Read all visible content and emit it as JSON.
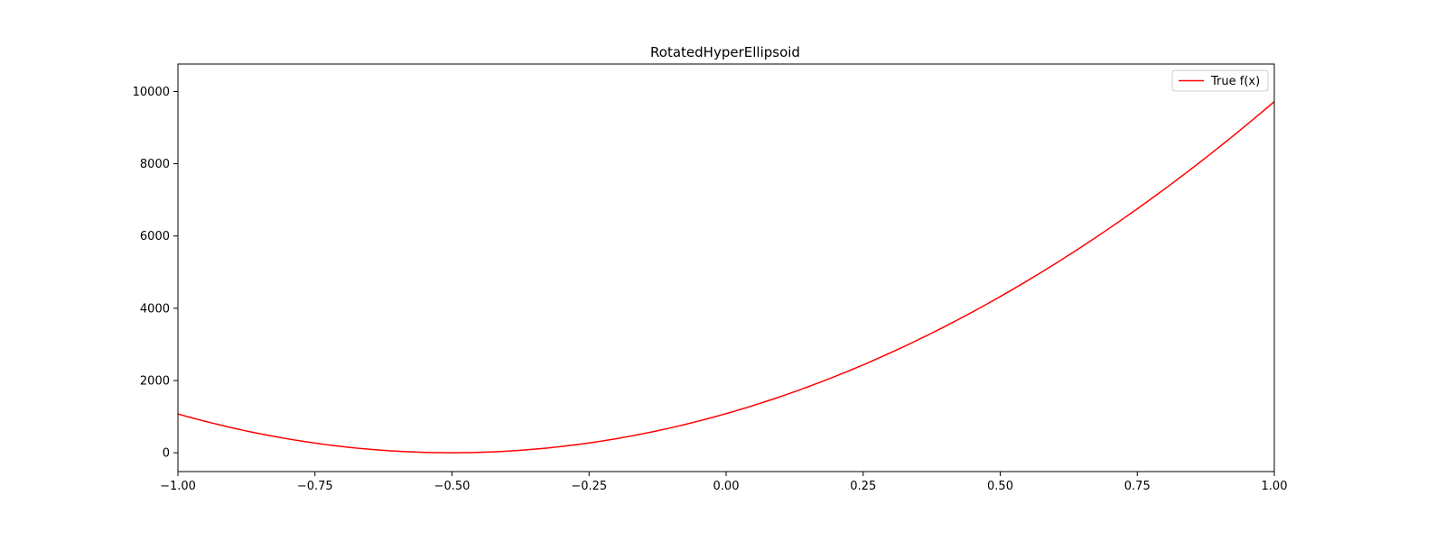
{
  "chart_data": {
    "type": "line",
    "title": "RotatedHyperEllipsoid",
    "xlabel": "",
    "ylabel": "",
    "xlim": [
      -1.0,
      1.0
    ],
    "ylim": [
      -520,
      10760
    ],
    "x_ticks": [
      -1.0,
      -0.75,
      -0.5,
      -0.25,
      0.0,
      0.25,
      0.5,
      0.75,
      1.0
    ],
    "x_tick_labels": [
      "−1.00",
      "−0.75",
      "−0.50",
      "−0.25",
      "0.00",
      "0.25",
      "0.50",
      "0.75",
      "1.00"
    ],
    "y_ticks": [
      0,
      2000,
      4000,
      6000,
      8000,
      10000
    ],
    "y_tick_labels": [
      "0",
      "2000",
      "4000",
      "6000",
      "8000",
      "10000"
    ],
    "grid": false,
    "legend_position": "top-right",
    "series": [
      {
        "name": "True f(x)",
        "color": "#ff0000",
        "x": [
          -1.0,
          -0.9,
          -0.8,
          -0.75,
          -0.7,
          -0.6,
          -0.5,
          -0.4,
          -0.3,
          -0.25,
          -0.2,
          -0.1,
          0.0,
          0.1,
          0.2,
          0.25,
          0.3,
          0.4,
          0.5,
          0.6,
          0.7,
          0.75,
          0.8,
          0.9,
          1.0
        ],
        "y": [
          1080,
          690,
          390,
          270,
          170,
          40,
          0,
          40,
          170,
          270,
          390,
          690,
          1080,
          1560,
          2120,
          2430,
          2770,
          3510,
          4330,
          5240,
          6230,
          6760,
          7310,
          8460,
          9700
        ]
      }
    ]
  }
}
